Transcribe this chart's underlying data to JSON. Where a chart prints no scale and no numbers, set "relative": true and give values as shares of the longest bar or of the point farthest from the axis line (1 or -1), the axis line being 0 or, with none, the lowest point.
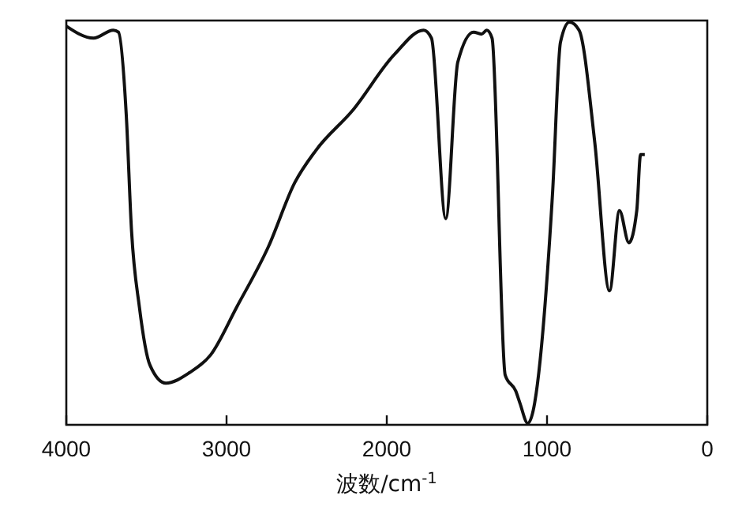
{
  "chart_data": {
    "type": "line",
    "xlabel": "波数/cm$^{-1}$",
    "xlim": [
      4000,
      0
    ],
    "xticks": [
      4000,
      3000,
      2000,
      1000,
      0
    ],
    "relative": true,
    "tick_labels": "x",
    "series": [
      {
        "color": "#111111",
        "x": [
          4000,
          3830,
          3707,
          3675,
          3626,
          3593,
          3544,
          3478,
          3379,
          3232,
          3100,
          2936,
          2739,
          2574,
          2443,
          2213,
          1951,
          1770,
          1721,
          1632,
          1557,
          1458,
          1409,
          1376,
          1343,
          1261,
          1195,
          1169,
          1120,
          966,
          916,
          860,
          800,
          702,
          610,
          548,
          489,
          440,
          416,
          390
        ],
        "values": [
          0.99,
          0.96,
          0.98,
          0.975,
          0.77,
          0.48,
          0.29,
          0.145,
          0.1,
          0.126,
          0.17,
          0.29,
          0.44,
          0.6,
          0.68,
          0.78,
          0.92,
          0.98,
          0.96,
          0.51,
          0.9,
          0.975,
          0.97,
          0.98,
          0.96,
          0.12,
          0.08,
          0.05,
          0,
          0.57,
          0.95,
          1,
          0.98,
          0.7,
          0.33,
          0.53,
          0.45,
          0.53,
          0.67,
          0.67
        ]
      }
    ]
  }
}
